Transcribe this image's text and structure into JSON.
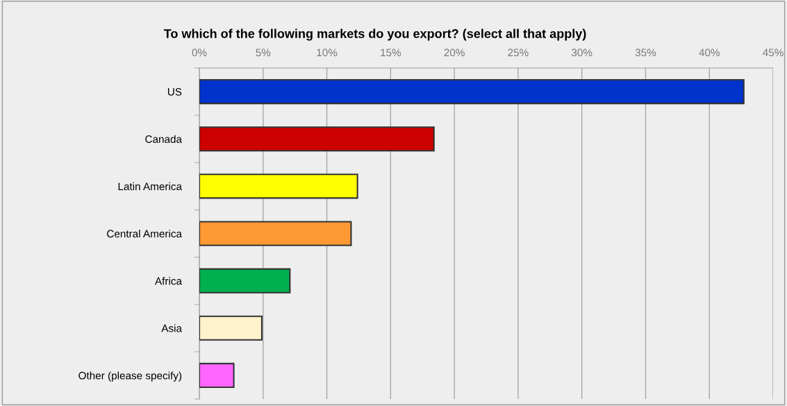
{
  "chart_data": {
    "type": "bar",
    "orientation": "horizontal",
    "title": "To which of the following markets do you export? (select all that apply)",
    "categories": [
      "US",
      "Canada",
      "Latin America",
      "Central America",
      "Africa",
      "Asia",
      "Other (please specify)"
    ],
    "values": [
      42.7,
      18.4,
      12.4,
      11.9,
      7.1,
      4.9,
      2.7
    ],
    "colors": [
      "#0033cc",
      "#cc0000",
      "#ffff00",
      "#ff9933",
      "#00b050",
      "#fff2cc",
      "#ff66ff"
    ],
    "xlim": [
      0,
      45
    ],
    "xticks": [
      {
        "value": 0,
        "label": "0%"
      },
      {
        "value": 5,
        "label": "5%"
      },
      {
        "value": 10,
        "label": "10%"
      },
      {
        "value": 15,
        "label": "15%"
      },
      {
        "value": 20,
        "label": "20%"
      },
      {
        "value": 25,
        "label": "25%"
      },
      {
        "value": 30,
        "label": "30%"
      },
      {
        "value": 35,
        "label": "35%"
      },
      {
        "value": 40,
        "label": "40%"
      },
      {
        "value": 45,
        "label": "45%"
      }
    ],
    "grid": "x",
    "legend": false
  }
}
